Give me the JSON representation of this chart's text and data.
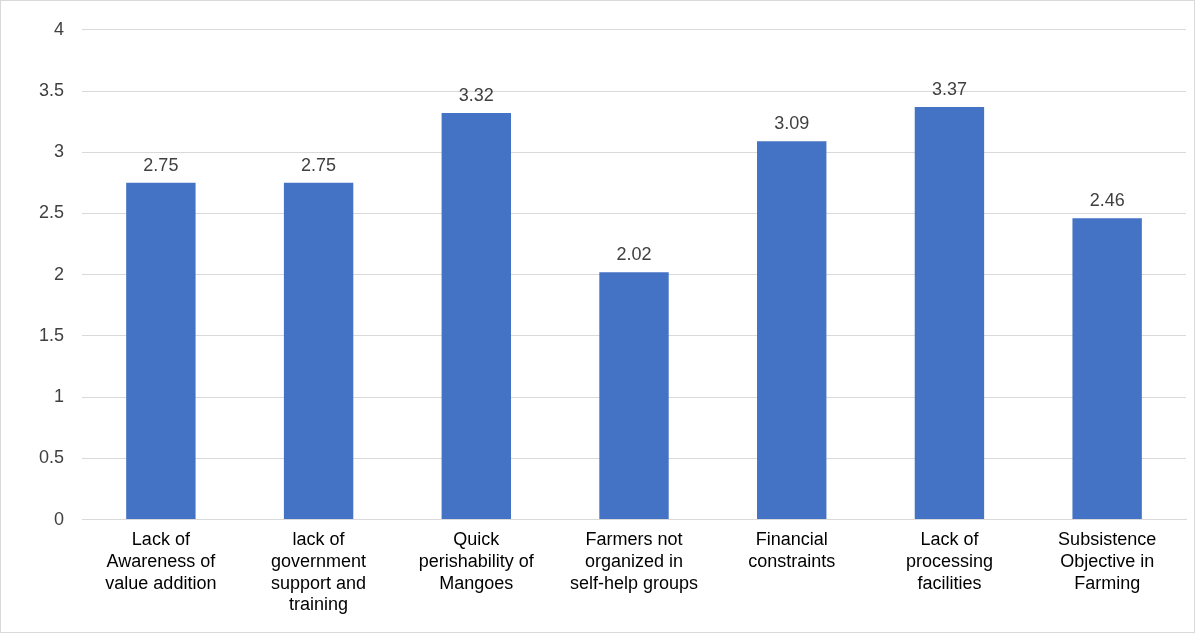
{
  "chart_data": {
    "type": "bar",
    "categories": [
      "Lack of Awareness of value addition",
      "lack of government support and training",
      "Quick perishability of Mangoes",
      "Farmers not organized in self-help groups",
      "Financial constraints",
      "Lack of processing facilities",
      "Subsistence Objective in Farming"
    ],
    "values": [
      2.75,
      2.75,
      3.32,
      2.02,
      3.09,
      3.37,
      2.46
    ],
    "color": "#4472c4",
    "ylim": [
      0,
      4
    ],
    "yticks": [
      0,
      0.5,
      1,
      1.5,
      2,
      2.5,
      3,
      3.5,
      4
    ],
    "grid": "y",
    "legend": false,
    "data_labels": true
  }
}
